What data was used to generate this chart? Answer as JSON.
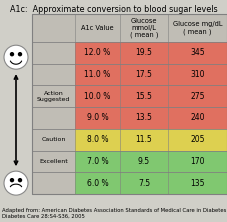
{
  "title": "A1c:  Approximate conversion to blood sugar levels",
  "header_texts": [
    "A1c Value",
    "Glucose\nmmol/L\n( mean )",
    "Glucose mg/dL\n( mean )"
  ],
  "rows": [
    {
      "label": "",
      "a1c": "12.0 %",
      "mmol": "19.5",
      "mgdl": "345",
      "color": "#e07060"
    },
    {
      "label": "",
      "a1c": "11.0 %",
      "mmol": "17.5",
      "mgdl": "310",
      "color": "#e07060"
    },
    {
      "label": "Action\nSuggested",
      "a1c": "10.0 %",
      "mmol": "15.5",
      "mgdl": "275",
      "color": "#e07060"
    },
    {
      "label": "",
      "a1c": "9.0 %",
      "mmol": "13.5",
      "mgdl": "240",
      "color": "#e07060"
    },
    {
      "label": "Caution",
      "a1c": "8.0 %",
      "mmol": "11.5",
      "mgdl": "205",
      "color": "#ddd050"
    },
    {
      "label": "Excellent",
      "a1c": "7.0 %",
      "mmol": "9.5",
      "mgdl": "170",
      "color": "#80c870"
    },
    {
      "label": "",
      "a1c": "6.0 %",
      "mmol": "7.5",
      "mgdl": "135",
      "color": "#80c870"
    }
  ],
  "footer": "Adapted from: American Diabetes Association Standards of Medical Care in Diabetes\nDiabetes Care 28:S4-S36, 2005",
  "bg_color": "#d0cfc8",
  "title_fontsize": 5.8,
  "header_fontsize": 4.8,
  "cell_fontsize": 5.5,
  "label_fontsize": 4.5,
  "footer_fontsize": 3.8
}
